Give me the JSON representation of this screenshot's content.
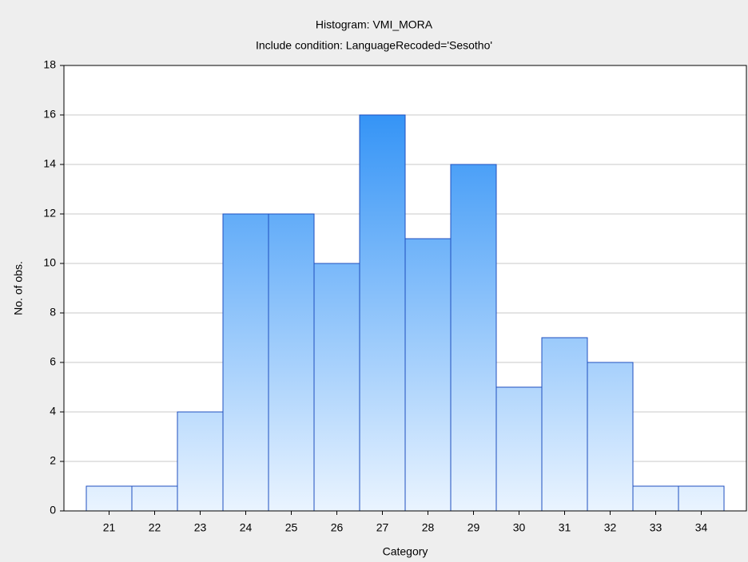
{
  "chart_data": {
    "type": "bar",
    "title": "Histogram: VMI_MORA",
    "subtitle": "Include condition: LanguageRecoded='Sesotho'",
    "x_label": "Category",
    "y_label": "No. of obs.",
    "categories": [
      21,
      22,
      23,
      24,
      25,
      26,
      27,
      28,
      29,
      30,
      31,
      32,
      33,
      34
    ],
    "values": [
      1,
      1,
      4,
      12,
      12,
      10,
      16,
      11,
      14,
      5,
      7,
      6,
      1,
      1
    ],
    "color": "#1e88f5",
    "ylim": [
      0,
      18
    ],
    "yticks": [
      0,
      2,
      4,
      6,
      8,
      10,
      12,
      14,
      16,
      18
    ],
    "grid": true
  }
}
